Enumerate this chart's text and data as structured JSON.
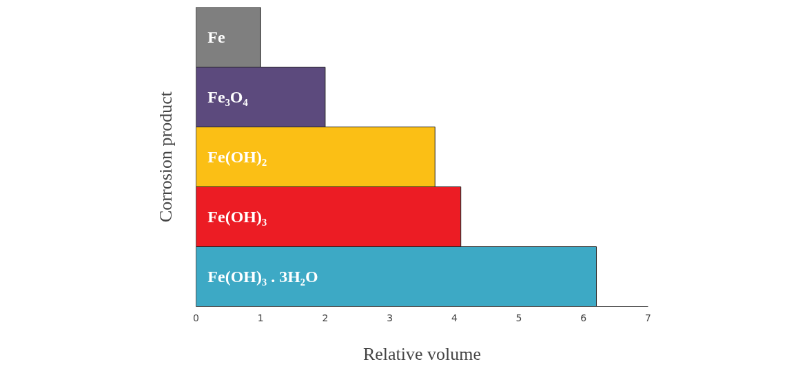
{
  "chart_data": {
    "type": "bar",
    "orientation": "horizontal",
    "xlabel": "Relative volume",
    "ylabel": "Corrosion product",
    "categories": [
      "Fe",
      "Fe₃O₄",
      "Fe(OH)₂",
      "Fe(OH)₃",
      "Fe(OH)₃ . 3H₂O"
    ],
    "values": [
      1,
      2,
      3.7,
      4.1,
      6.2
    ],
    "colors": [
      "#7f7f7f",
      "#5c4a7d",
      "#fbbf15",
      "#ec1c24",
      "#3da9c5"
    ],
    "xlim": [
      0,
      7
    ],
    "xticks": [
      0,
      1,
      2,
      3,
      4,
      5,
      6,
      7
    ],
    "grid": false
  }
}
